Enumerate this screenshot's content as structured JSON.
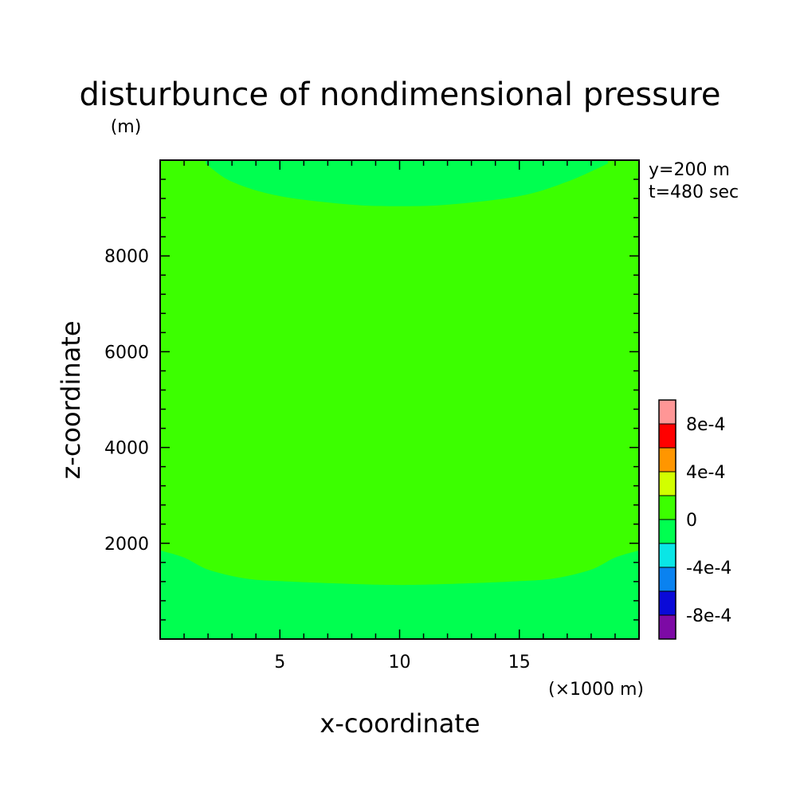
{
  "chart_data": {
    "type": "heatmap",
    "title": "disturbunce of nondimensional pressure",
    "ylabel": "z-coordinate",
    "yunit": "(m)",
    "xlabel": "x-coordinate",
    "xunit": "(×1000 m)",
    "annotations": [
      "y=200 m",
      "t=480 sec"
    ],
    "xlim": [
      0,
      20
    ],
    "ylim": [
      0,
      10000
    ],
    "x_ticks": [
      5,
      10,
      15
    ],
    "y_ticks": [
      2000,
      4000,
      6000,
      8000
    ],
    "colorbar": {
      "levels": [
        -0.001,
        -0.0008,
        -0.0006,
        -0.0004,
        -0.0002,
        0,
        0.0002,
        0.0004,
        0.0006,
        0.0008,
        0.001
      ],
      "colors": [
        "#7d0aa5",
        "#0a0ad8",
        "#0a82f0",
        "#0ae6e6",
        "#00ff50",
        "#3cff00",
        "#d2ff00",
        "#ff9600",
        "#ff0000",
        "#ff9696"
      ],
      "tick_labels": [
        {
          "value": 0.0008,
          "label": "8e-4"
        },
        {
          "value": 0.0004,
          "label": "4e-4"
        },
        {
          "value": 0,
          "label": "0"
        },
        {
          "value": -0.0004,
          "label": "-4e-4"
        },
        {
          "value": -0.0008,
          "label": "-8e-4"
        }
      ]
    },
    "regions": [
      {
        "name": "upper-negative-region",
        "range": [
          -0.0002,
          0
        ],
        "color": "#00ff50",
        "boundary_x": [
          1.9,
          3,
          5,
          8,
          10,
          12,
          15,
          17,
          18.7
        ],
        "boundary_z": [
          9930,
          9550,
          9250,
          9070,
          9040,
          9070,
          9250,
          9550,
          9930
        ]
      },
      {
        "name": "lower-negative-region",
        "range": [
          -0.0002,
          0
        ],
        "color": "#00ff50",
        "boundary_x": [
          0,
          1,
          2,
          3.5,
          5,
          8,
          10,
          12,
          15,
          16.5,
          18,
          19,
          20
        ],
        "boundary_z": [
          1850,
          1700,
          1450,
          1270,
          1210,
          1150,
          1130,
          1150,
          1210,
          1270,
          1450,
          1700,
          1850
        ]
      }
    ],
    "background_range": [
      0,
      0.0002
    ],
    "background_color": "#3cff00"
  }
}
